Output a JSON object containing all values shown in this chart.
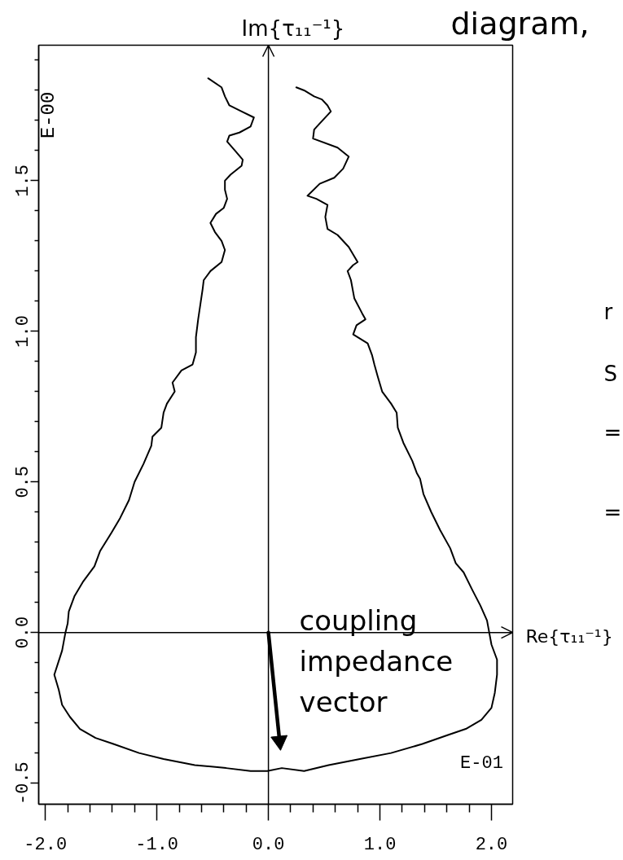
{
  "chart_data": {
    "type": "line",
    "title": "diagram,",
    "annotations": [
      "E-00",
      "E-01",
      "r",
      "S",
      "=",
      "="
    ],
    "xlim": [
      -2.06,
      2.19
    ],
    "ylim": [
      -0.57,
      1.95
    ],
    "xticks": [
      {
        "value": -2,
        "label": "-2.0"
      },
      {
        "value": -1.8,
        "label": null
      },
      {
        "value": -1.6,
        "label": null
      },
      {
        "value": -1.4,
        "label": null
      },
      {
        "value": -1.2,
        "label": null
      },
      {
        "value": -1,
        "label": "-1.0"
      },
      {
        "value": -0.8,
        "label": null
      },
      {
        "value": -0.6,
        "label": null
      },
      {
        "value": -0.4,
        "label": null
      },
      {
        "value": -0.2,
        "label": null
      },
      {
        "value": 0,
        "label": "0.0"
      },
      {
        "value": 0.2,
        "label": null
      },
      {
        "value": 0.4,
        "label": null
      },
      {
        "value": 0.6,
        "label": null
      },
      {
        "value": 0.8,
        "label": null
      },
      {
        "value": 1,
        "label": "1.0"
      },
      {
        "value": 1.2,
        "label": null
      },
      {
        "value": 1.4,
        "label": null
      },
      {
        "value": 1.6,
        "label": null
      },
      {
        "value": 1.8,
        "label": null
      },
      {
        "value": 2,
        "label": "2.0"
      }
    ],
    "yticks": [
      {
        "value": -0.5,
        "label": "-0.5"
      },
      {
        "value": -0.4,
        "label": null
      },
      {
        "value": -0.3,
        "label": null
      },
      {
        "value": -0.2,
        "label": null
      },
      {
        "value": -0.1,
        "label": null
      },
      {
        "value": 0,
        "label": "0.0"
      },
      {
        "value": 0.1,
        "label": null
      },
      {
        "value": 0.2,
        "label": null
      },
      {
        "value": 0.3,
        "label": null
      },
      {
        "value": 0.4,
        "label": null
      },
      {
        "value": 0.5,
        "label": "0.5"
      },
      {
        "value": 0.6,
        "label": null
      },
      {
        "value": 0.7,
        "label": null
      },
      {
        "value": 0.8,
        "label": null
      },
      {
        "value": 0.9,
        "label": null
      },
      {
        "value": 1,
        "label": "1.0"
      },
      {
        "value": 1.1,
        "label": null
      },
      {
        "value": 1.2,
        "label": null
      },
      {
        "value": 1.3,
        "label": null
      },
      {
        "value": 1.4,
        "label": null
      },
      {
        "value": 1.5,
        "label": "1.5"
      },
      {
        "value": 1.6,
        "label": null
      },
      {
        "value": 1.7,
        "label": null
      },
      {
        "value": 1.8,
        "label": null
      },
      {
        "value": 1.9,
        "label": null
      }
    ],
    "ref_lines": [
      {
        "axis": "x",
        "value": 0,
        "label": "Im{τ₁₁⁻¹}"
      },
      {
        "axis": "y",
        "value": 0,
        "label": "Re{τ₁₁⁻¹}"
      }
    ],
    "series": [
      {
        "color": "#000000",
        "x": [
          -0.54,
          -0.42,
          -0.39,
          -0.35,
          -0.24,
          -0.13,
          -0.16,
          -0.26,
          -0.35,
          -0.37,
          -0.3,
          -0.23,
          -0.24,
          -0.34,
          -0.39,
          -0.39,
          -0.37,
          -0.4,
          -0.47,
          -0.52,
          -0.48,
          -0.42,
          -0.39,
          -0.42,
          -0.52,
          -0.58,
          -0.59,
          -0.61,
          -0.63,
          -0.65,
          -0.65,
          -0.68,
          -0.78,
          -0.86,
          -0.84,
          -0.91,
          -0.94,
          -0.96,
          -1.04,
          -1.05,
          -1.12,
          -1.2,
          -1.25,
          -1.33,
          -1.41,
          -1.51,
          -1.56,
          -1.66,
          -1.74,
          -1.79,
          -1.8,
          -1.82,
          -1.85,
          -1.92,
          -1.88,
          -1.85,
          -1.78,
          -1.69,
          -1.55,
          -1.39,
          -1.16,
          -0.94,
          -0.66,
          -0.38,
          -0.16,
          -0.01,
          0.12,
          0.32,
          0.54,
          0.82,
          1.1,
          1.38,
          1.61,
          1.77,
          1.91,
          2.0,
          2.03,
          2.05,
          2.05,
          2.0,
          1.98,
          1.96,
          1.9,
          1.83,
          1.75,
          1.68,
          1.63,
          1.54,
          1.46,
          1.39,
          1.36,
          1.33,
          1.29,
          1.21,
          1.16,
          1.15,
          1.1,
          1.02,
          0.98,
          0.95,
          0.93,
          0.89,
          0.76,
          0.79,
          0.87,
          0.84,
          0.77,
          0.74,
          0.71,
          0.76,
          0.8,
          0.72,
          0.62,
          0.53,
          0.51,
          0.53,
          0.43,
          0.35,
          0.46,
          0.59,
          0.67,
          0.72,
          0.62,
          0.4,
          0.41,
          0.46,
          0.56,
          0.53,
          0.48,
          0.41,
          0.32,
          0.25
        ],
        "values": [
          1.84,
          1.81,
          1.78,
          1.75,
          1.73,
          1.71,
          1.68,
          1.66,
          1.65,
          1.63,
          1.6,
          1.57,
          1.55,
          1.52,
          1.5,
          1.47,
          1.44,
          1.41,
          1.39,
          1.36,
          1.33,
          1.3,
          1.27,
          1.23,
          1.2,
          1.17,
          1.14,
          1.09,
          1.04,
          0.98,
          0.93,
          0.89,
          0.87,
          0.83,
          0.8,
          0.76,
          0.73,
          0.68,
          0.65,
          0.62,
          0.56,
          0.5,
          0.44,
          0.38,
          0.33,
          0.27,
          0.22,
          0.17,
          0.12,
          0.07,
          0.03,
          0.0,
          -0.06,
          -0.14,
          -0.19,
          -0.24,
          -0.28,
          -0.32,
          -0.35,
          -0.37,
          -0.4,
          -0.42,
          -0.44,
          -0.45,
          -0.46,
          -0.46,
          -0.45,
          -0.46,
          -0.44,
          -0.42,
          -0.4,
          -0.37,
          -0.34,
          -0.32,
          -0.29,
          -0.25,
          -0.2,
          -0.14,
          -0.09,
          -0.04,
          0.0,
          0.04,
          0.09,
          0.14,
          0.2,
          0.23,
          0.28,
          0.34,
          0.4,
          0.46,
          0.51,
          0.53,
          0.57,
          0.63,
          0.68,
          0.73,
          0.76,
          0.8,
          0.85,
          0.89,
          0.92,
          0.96,
          0.99,
          1.02,
          1.04,
          1.06,
          1.11,
          1.17,
          1.2,
          1.22,
          1.23,
          1.28,
          1.32,
          1.34,
          1.38,
          1.42,
          1.44,
          1.45,
          1.49,
          1.51,
          1.54,
          1.58,
          1.61,
          1.64,
          1.67,
          1.69,
          1.73,
          1.75,
          1.77,
          1.78,
          1.8,
          1.81
        ]
      },
      {
        "name": "coupling impedance vector",
        "color": "#000000",
        "x": [
          0,
          0.1
        ],
        "values": [
          0,
          -0.36
        ]
      }
    ]
  }
}
